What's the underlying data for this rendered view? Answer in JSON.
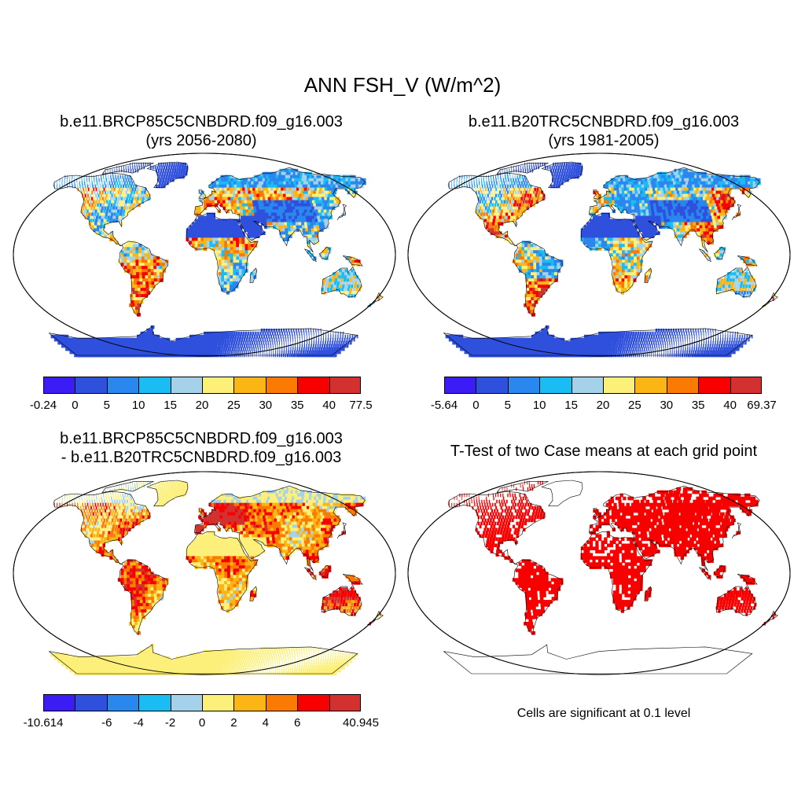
{
  "title": "ANN FSH_V (W/m^2)",
  "palette": [
    "#3c1cf4",
    "#2e50dc",
    "#2a87ee",
    "#19bcf3",
    "#a5d2ea",
    "#fdf07a",
    "#fbb514",
    "#fa7a03",
    "#f90000",
    "#d2312f"
  ],
  "ocean_color": "#ffffff",
  "coastline_color": "#000000",
  "panels": [
    {
      "id": "p1",
      "title_line1": "b.e11.BRCP85C5CNBDRD.f09_g16.003",
      "title_line2": "(yrs 2056-2080)",
      "colorbar_labels": [
        "-0.24",
        "0",
        "5",
        "10",
        "15",
        "20",
        "25",
        "30",
        "35",
        "40",
        "77.5"
      ],
      "pattern": "case"
    },
    {
      "id": "p2",
      "title_line1": "b.e11.B20TRC5CNBDRD.f09_g16.003",
      "title_line2": "(yrs 1981-2005)",
      "colorbar_labels": [
        "-5.64",
        "0",
        "5",
        "10",
        "15",
        "20",
        "25",
        "30",
        "35",
        "40",
        "69.37"
      ],
      "pattern": "case"
    },
    {
      "id": "p3",
      "title_line1": "b.e11.BRCP85C5CNBDRD.f09_g16.003",
      "title_line2": "- b.e11.B20TRC5CNBDRD.f09_g16.003",
      "colorbar_labels": [
        "-10.614",
        "",
        "-6",
        "-4",
        "-2",
        "0",
        "2",
        "4",
        "6",
        "",
        "40.945"
      ],
      "pattern": "diff"
    },
    {
      "id": "p4",
      "title_line1": "T-Test of two Case means at each grid point",
      "note": "Cells are significant at 0.1 level",
      "significant_color": "#f90000",
      "pattern": "ttest"
    }
  ]
}
